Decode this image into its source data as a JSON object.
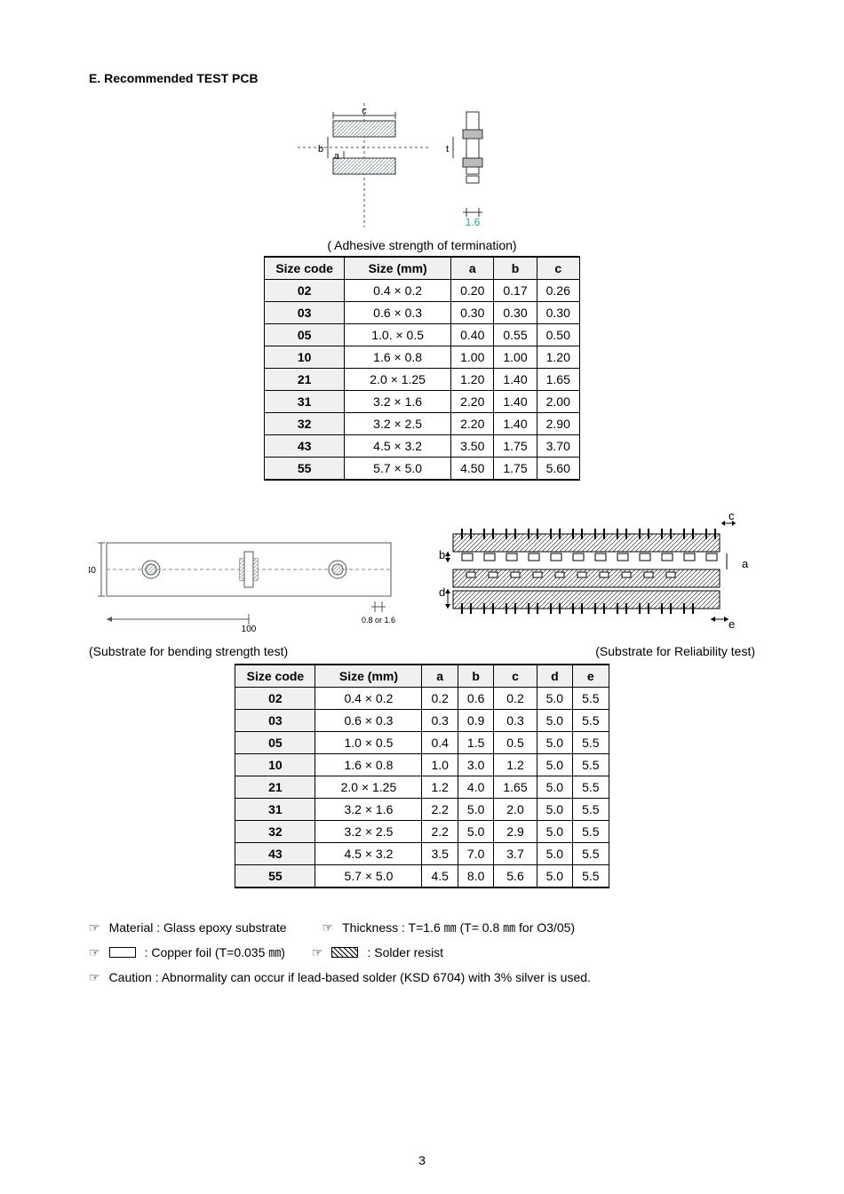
{
  "title": "E. Recommended TEST PCB",
  "table1": {
    "caption": "( Adhesive strength of termination)",
    "columns": [
      "Size code",
      "Size (mm)",
      "a",
      "b",
      "c"
    ],
    "rows": [
      [
        "02",
        "0.4 × 0.2",
        "0.20",
        "0.17",
        "0.26"
      ],
      [
        "03",
        "0.6 × 0.3",
        "0.30",
        "0.30",
        "0.30"
      ],
      [
        "05",
        "1.0. × 0.5",
        "0.40",
        "0.55",
        "0.50"
      ],
      [
        "10",
        "1.6 × 0.8",
        "1.00",
        "1.00",
        "1.20"
      ],
      [
        "21",
        "2.0 × 1.25",
        "1.20",
        "1.40",
        "1.65"
      ],
      [
        "31",
        "3.2 × 1.6",
        "2.20",
        "1.40",
        "2.00"
      ],
      [
        "32",
        "3.2 × 2.5",
        "2.20",
        "1.40",
        "2.90"
      ],
      [
        "43",
        "4.5 × 3.2",
        "3.50",
        "1.75",
        "3.70"
      ],
      [
        "55",
        "5.7 × 5.0",
        "4.50",
        "1.75",
        "5.60"
      ]
    ]
  },
  "caption_left": "(Substrate for bending strength test)",
  "caption_right": "(Substrate for Reliability test)",
  "table2": {
    "columns": [
      "Size code",
      "Size (mm)",
      "a",
      "b",
      "c",
      "d",
      "e"
    ],
    "rows": [
      [
        "02",
        "0.4 × 0.2",
        "0.2",
        "0.6",
        "0.2",
        "5.0",
        "5.5"
      ],
      [
        "03",
        "0.6 × 0.3",
        "0.3",
        "0.9",
        "0.3",
        "5.0",
        "5.5"
      ],
      [
        "05",
        "1.0 × 0.5",
        "0.4",
        "1.5",
        "0.5",
        "5.0",
        "5.5"
      ],
      [
        "10",
        "1.6 × 0.8",
        "1.0",
        "3.0",
        "1.2",
        "5.0",
        "5.5"
      ],
      [
        "21",
        "2.0 × 1.25",
        "1.2",
        "4.0",
        "1.65",
        "5.0",
        "5.5"
      ],
      [
        "31",
        "3.2 × 1.6",
        "2.2",
        "5.0",
        "2.0",
        "5.0",
        "5.5"
      ],
      [
        "32",
        "3.2 × 2.5",
        "2.2",
        "5.0",
        "2.9",
        "5.0",
        "5.5"
      ],
      [
        "43",
        "4.5 × 3.2",
        "3.5",
        "7.0",
        "3.7",
        "5.0",
        "5.5"
      ],
      [
        "55",
        "5.7 × 5.0",
        "4.5",
        "8.0",
        "5.6",
        "5.0",
        "5.5"
      ]
    ]
  },
  "notes": {
    "pointer_glyph": "☞",
    "material": "Material : Glass epoxy substrate",
    "thickness": "Thickness : T=1.6 ㎜ (T= 0.8 ㎜ for O3/05)",
    "copper": ": Copper foil (T=0.035 ㎜)",
    "solder": ": Solder resist",
    "caution": "Caution : Abnormality can occur if lead-based solder (KSD 6704) with 3% silver is used."
  },
  "diagram1": {
    "labels": {
      "a": "a",
      "b": "b",
      "c": "c",
      "t": "t",
      "sixteen": "1.6"
    },
    "colors": {
      "stroke": "#333",
      "hatch": "#9aa"
    }
  },
  "diagram_bend": {
    "labels": {
      "forty": "40",
      "hundred": "100",
      "thick": "0.8 or 1.6"
    },
    "colors": {
      "stroke": "#333"
    }
  },
  "diagram_rel": {
    "labels": {
      "a": "a",
      "b": "b",
      "c": "c",
      "d": "d",
      "e": "e"
    },
    "colors": {
      "stroke": "#000"
    }
  },
  "page_number": "3"
}
